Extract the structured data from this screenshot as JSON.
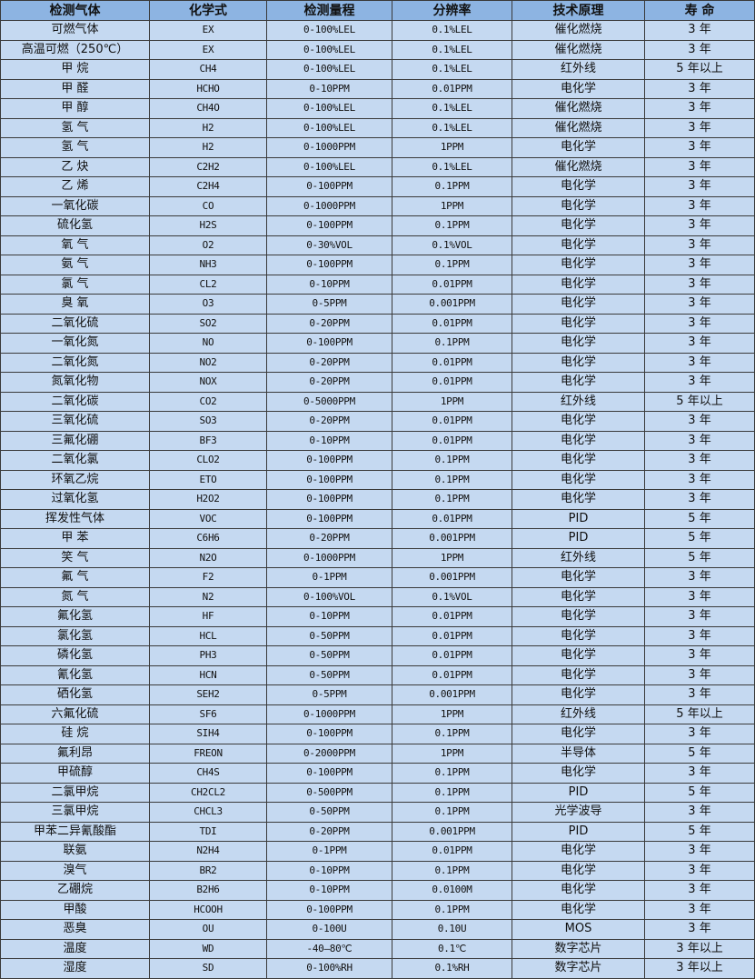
{
  "colors": {
    "header_bg": "#8db4e2",
    "row_bg": "#c5d9f1",
    "border": "#3a3a3a"
  },
  "table": {
    "headers": [
      "检测气体",
      "化学式",
      "检测量程",
      "分辨率",
      "技术原理",
      "寿 命"
    ],
    "rows": [
      [
        "可燃气体",
        "EX",
        "0-100%LEL",
        "0.1%LEL",
        "催化燃烧",
        "3 年"
      ],
      [
        "高温可燃（250℃）",
        "EX",
        "0-100%LEL",
        "0.1%LEL",
        "催化燃烧",
        "3 年"
      ],
      [
        "甲 烷",
        "CH4",
        "0-100%LEL",
        "0.1%LEL",
        "红外线",
        "5 年以上"
      ],
      [
        "甲 醛",
        "HCHO",
        "0-10PPM",
        "0.01PPM",
        "电化学",
        "3 年"
      ],
      [
        "甲 醇",
        "CH4O",
        "0-100%LEL",
        "0.1%LEL",
        "催化燃烧",
        "3 年"
      ],
      [
        "氢 气",
        "H2",
        "0-100%LEL",
        "0.1%LEL",
        "催化燃烧",
        "3 年"
      ],
      [
        "氢 气",
        "H2",
        "0-1000PPM",
        "1PPM",
        "电化学",
        "3 年"
      ],
      [
        "乙 炔",
        "C2H2",
        "0-100%LEL",
        "0.1%LEL",
        "催化燃烧",
        "3 年"
      ],
      [
        "乙 烯",
        "C2H4",
        "0-100PPM",
        "0.1PPM",
        "电化学",
        "3 年"
      ],
      [
        "一氧化碳",
        "CO",
        "0-1000PPM",
        "1PPM",
        "电化学",
        "3 年"
      ],
      [
        "硫化氢",
        "H2S",
        "0-100PPM",
        "0.1PPM",
        "电化学",
        "3 年"
      ],
      [
        "氧 气",
        "O2",
        "0-30%VOL",
        "0.1%VOL",
        "电化学",
        "3 年"
      ],
      [
        "氨 气",
        "NH3",
        "0-100PPM",
        "0.1PPM",
        "电化学",
        "3 年"
      ],
      [
        "氯 气",
        "CL2",
        "0-10PPM",
        "0.01PPM",
        "电化学",
        "3 年"
      ],
      [
        "臭 氧",
        "O3",
        "0-5PPM",
        "0.001PPM",
        "电化学",
        "3 年"
      ],
      [
        "二氧化硫",
        "SO2",
        "0-20PPM",
        "0.01PPM",
        "电化学",
        "3 年"
      ],
      [
        "一氧化氮",
        "NO",
        "0-100PPM",
        "0.1PPM",
        "电化学",
        "3 年"
      ],
      [
        "二氧化氮",
        "NO2",
        "0-20PPM",
        "0.01PPM",
        "电化学",
        "3 年"
      ],
      [
        "氮氧化物",
        "NOX",
        "0-20PPM",
        "0.01PPM",
        "电化学",
        "3 年"
      ],
      [
        "二氧化碳",
        "CO2",
        "0-5000PPM",
        "1PPM",
        "红外线",
        "5 年以上"
      ],
      [
        "三氧化硫",
        "SO3",
        "0-20PPM",
        "0.01PPM",
        "电化学",
        "3 年"
      ],
      [
        "三氟化硼",
        "BF3",
        "0-10PPM",
        "0.01PPM",
        "电化学",
        "3 年"
      ],
      [
        "二氧化氯",
        "CLO2",
        "0-100PPM",
        "0.1PPM",
        "电化学",
        "3 年"
      ],
      [
        "环氧乙烷",
        "ETO",
        "0-100PPM",
        "0.1PPM",
        "电化学",
        "3 年"
      ],
      [
        "过氧化氢",
        "H2O2",
        "0-100PPM",
        "0.1PPM",
        "电化学",
        "3 年"
      ],
      [
        "挥发性气体",
        "VOC",
        "0-100PPM",
        "0.01PPM",
        "PID",
        "5 年"
      ],
      [
        "甲 苯",
        "C6H6",
        "0-20PPM",
        "0.001PPM",
        "PID",
        "5 年"
      ],
      [
        "笑 气",
        "N2O",
        "0-1000PPM",
        "1PPM",
        "红外线",
        "5 年"
      ],
      [
        "氟 气",
        "F2",
        "0-1PPM",
        "0.001PPM",
        "电化学",
        "3 年"
      ],
      [
        "氮 气",
        "N2",
        "0-100%VOL",
        "0.1%VOL",
        "电化学",
        "3 年"
      ],
      [
        "氟化氢",
        "HF",
        "0-10PPM",
        "0.01PPM",
        "电化学",
        "3 年"
      ],
      [
        "氯化氢",
        "HCL",
        "0-50PPM",
        "0.01PPM",
        "电化学",
        "3 年"
      ],
      [
        "磷化氢",
        "PH3",
        "0-50PPM",
        "0.01PPM",
        "电化学",
        "3 年"
      ],
      [
        "氰化氢",
        "HCN",
        "0-50PPM",
        "0.01PPM",
        "电化学",
        "3 年"
      ],
      [
        "硒化氢",
        "SEH2",
        "0-5PPM",
        "0.001PPM",
        "电化学",
        "3 年"
      ],
      [
        "六氟化硫",
        "SF6",
        "0-1000PPM",
        "1PPM",
        "红外线",
        "5 年以上"
      ],
      [
        "硅 烷",
        "SIH4",
        "0-100PPM",
        "0.1PPM",
        "电化学",
        "3 年"
      ],
      [
        "氟利昂",
        "FREON",
        "0-2000PPM",
        "1PPM",
        "半导体",
        "5 年"
      ],
      [
        "甲硫醇",
        "CH4S",
        "0-100PPM",
        "0.1PPM",
        "电化学",
        "3 年"
      ],
      [
        "二氯甲烷",
        "CH2CL2",
        "0-500PPM",
        "0.1PPM",
        "PID",
        "5 年"
      ],
      [
        "三氯甲烷",
        "CHCL3",
        "0-50PPM",
        "0.1PPM",
        "光学波导",
        "3 年"
      ],
      [
        "甲苯二异氰酸酯",
        "TDI",
        "0-20PPM",
        "0.001PPM",
        "PID",
        "5 年"
      ],
      [
        "联氨",
        "N2H4",
        "0-1PPM",
        "0.01PPM",
        "电化学",
        "3 年"
      ],
      [
        "溴气",
        "BR2",
        "0-10PPM",
        "0.1PPM",
        "电化学",
        "3 年"
      ],
      [
        "乙硼烷",
        "B2H6",
        "0-10PPM",
        "0.0100M",
        "电化学",
        "3 年"
      ],
      [
        "甲酸",
        "HCOOH",
        "0-100PPM",
        "0.1PPM",
        "电化学",
        "3 年"
      ],
      [
        "恶臭",
        "OU",
        "0-100U",
        "0.10U",
        "MOS",
        "3 年"
      ],
      [
        "温度",
        "WD",
        "-40—80℃",
        "0.1℃",
        "数字芯片",
        "3 年以上"
      ],
      [
        "湿度",
        "SD",
        "0-100%RH",
        "0.1%RH",
        "数字芯片",
        "3 年以上"
      ]
    ]
  }
}
